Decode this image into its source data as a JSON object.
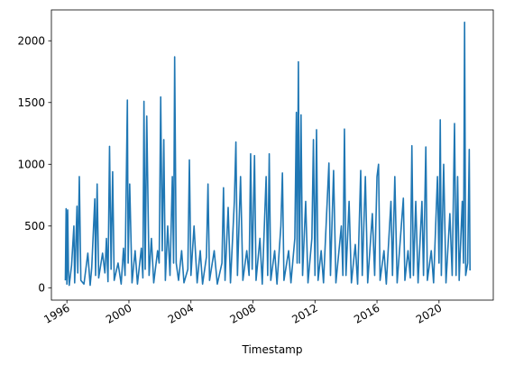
{
  "chart_data": {
    "type": "line",
    "title": "",
    "xlabel": "Timestamp",
    "ylabel": "",
    "xlim": [
      1995.0,
      2023.5
    ],
    "ylim": [
      -100,
      2250
    ],
    "x_ticks": [
      {
        "value": 1996,
        "label": "1996"
      },
      {
        "value": 2000,
        "label": "2000"
      },
      {
        "value": 2004,
        "label": "2004"
      },
      {
        "value": 2008,
        "label": "2008"
      },
      {
        "value": 2012,
        "label": "2012"
      },
      {
        "value": 2016,
        "label": "2016"
      },
      {
        "value": 2020,
        "label": "2020"
      }
    ],
    "y_ticks": [
      {
        "value": 0,
        "label": "0"
      },
      {
        "value": 500,
        "label": "500"
      },
      {
        "value": 1000,
        "label": "1000"
      },
      {
        "value": 1500,
        "label": "1500"
      },
      {
        "value": 2000,
        "label": "2000"
      }
    ],
    "grid": false,
    "series_color": "#1f77b4",
    "series": [
      {
        "values": [
          [
            1995.9,
            60
          ],
          [
            1995.95,
            640
          ],
          [
            1996.0,
            30
          ],
          [
            1996.05,
            630
          ],
          [
            1996.1,
            140
          ],
          [
            1996.15,
            20
          ],
          [
            1996.3,
            180
          ],
          [
            1996.45,
            500
          ],
          [
            1996.5,
            40
          ],
          [
            1996.65,
            660
          ],
          [
            1996.7,
            120
          ],
          [
            1996.8,
            900
          ],
          [
            1996.9,
            60
          ],
          [
            1997.1,
            30
          ],
          [
            1997.35,
            280
          ],
          [
            1997.5,
            20
          ],
          [
            1997.6,
            160
          ],
          [
            1997.8,
            720
          ],
          [
            1997.85,
            100
          ],
          [
            1997.95,
            840
          ],
          [
            1998.05,
            80
          ],
          [
            1998.3,
            280
          ],
          [
            1998.45,
            120
          ],
          [
            1998.55,
            400
          ],
          [
            1998.65,
            50
          ],
          [
            1998.75,
            1145
          ],
          [
            1998.85,
            150
          ],
          [
            1998.95,
            940
          ],
          [
            1999.05,
            60
          ],
          [
            1999.3,
            200
          ],
          [
            1999.5,
            30
          ],
          [
            1999.65,
            320
          ],
          [
            1999.75,
            100
          ],
          [
            1999.9,
            1520
          ],
          [
            1999.95,
            200
          ],
          [
            2000.05,
            840
          ],
          [
            2000.2,
            40
          ],
          [
            2000.4,
            300
          ],
          [
            2000.55,
            30
          ],
          [
            2000.8,
            320
          ],
          [
            2000.9,
            80
          ],
          [
            2000.97,
            1510
          ],
          [
            2001.05,
            150
          ],
          [
            2001.15,
            1390
          ],
          [
            2001.3,
            100
          ],
          [
            2001.45,
            400
          ],
          [
            2001.6,
            40
          ],
          [
            2001.85,
            300
          ],
          [
            2001.95,
            200
          ],
          [
            2002.05,
            1545
          ],
          [
            2002.15,
            300
          ],
          [
            2002.25,
            1200
          ],
          [
            2002.35,
            60
          ],
          [
            2002.5,
            500
          ],
          [
            2002.65,
            100
          ],
          [
            2002.8,
            900
          ],
          [
            2002.88,
            200
          ],
          [
            2002.95,
            1870
          ],
          [
            2003.05,
            200
          ],
          [
            2003.2,
            60
          ],
          [
            2003.4,
            300
          ],
          [
            2003.55,
            40
          ],
          [
            2003.8,
            150
          ],
          [
            2003.9,
            1035
          ],
          [
            2004.0,
            100
          ],
          [
            2004.2,
            500
          ],
          [
            2004.4,
            40
          ],
          [
            2004.6,
            300
          ],
          [
            2004.75,
            30
          ],
          [
            2005.0,
            250
          ],
          [
            2005.1,
            840
          ],
          [
            2005.2,
            60
          ],
          [
            2005.5,
            300
          ],
          [
            2005.7,
            30
          ],
          [
            2006.0,
            200
          ],
          [
            2006.1,
            810
          ],
          [
            2006.2,
            60
          ],
          [
            2006.4,
            650
          ],
          [
            2006.55,
            40
          ],
          [
            2006.8,
            700
          ],
          [
            2006.9,
            1180
          ],
          [
            2007.0,
            100
          ],
          [
            2007.2,
            900
          ],
          [
            2007.35,
            60
          ],
          [
            2007.6,
            300
          ],
          [
            2007.75,
            100
          ],
          [
            2007.85,
            1085
          ],
          [
            2007.95,
            150
          ],
          [
            2008.1,
            1070
          ],
          [
            2008.2,
            60
          ],
          [
            2008.45,
            400
          ],
          [
            2008.6,
            30
          ],
          [
            2008.85,
            900
          ],
          [
            2008.95,
            100
          ],
          [
            2009.05,
            1085
          ],
          [
            2009.15,
            60
          ],
          [
            2009.4,
            300
          ],
          [
            2009.55,
            30
          ],
          [
            2009.8,
            500
          ],
          [
            2009.9,
            930
          ],
          [
            2010.0,
            60
          ],
          [
            2010.3,
            300
          ],
          [
            2010.45,
            40
          ],
          [
            2010.7,
            400
          ],
          [
            2010.8,
            1420
          ],
          [
            2010.85,
            200
          ],
          [
            2010.93,
            1830
          ],
          [
            2011.0,
            200
          ],
          [
            2011.1,
            1400
          ],
          [
            2011.2,
            100
          ],
          [
            2011.4,
            700
          ],
          [
            2011.55,
            40
          ],
          [
            2011.8,
            400
          ],
          [
            2011.9,
            1200
          ],
          [
            2012.0,
            100
          ],
          [
            2012.1,
            1280
          ],
          [
            2012.2,
            60
          ],
          [
            2012.4,
            300
          ],
          [
            2012.55,
            40
          ],
          [
            2012.9,
            1010
          ],
          [
            2013.0,
            100
          ],
          [
            2013.2,
            950
          ],
          [
            2013.35,
            40
          ],
          [
            2013.7,
            500
          ],
          [
            2013.8,
            100
          ],
          [
            2013.9,
            1285
          ],
          [
            2014.0,
            100
          ],
          [
            2014.2,
            700
          ],
          [
            2014.35,
            40
          ],
          [
            2014.6,
            350
          ],
          [
            2014.75,
            30
          ],
          [
            2014.95,
            950
          ],
          [
            2015.05,
            100
          ],
          [
            2015.25,
            900
          ],
          [
            2015.4,
            40
          ],
          [
            2015.7,
            600
          ],
          [
            2015.85,
            100
          ],
          [
            2016.0,
            900
          ],
          [
            2016.1,
            1000
          ],
          [
            2016.2,
            60
          ],
          [
            2016.45,
            300
          ],
          [
            2016.6,
            30
          ],
          [
            2016.9,
            700
          ],
          [
            2017.0,
            100
          ],
          [
            2017.15,
            900
          ],
          [
            2017.3,
            40
          ],
          [
            2017.7,
            725
          ],
          [
            2017.8,
            60
          ],
          [
            2018.0,
            300
          ],
          [
            2018.15,
            80
          ],
          [
            2018.25,
            1150
          ],
          [
            2018.35,
            100
          ],
          [
            2018.5,
            700
          ],
          [
            2018.65,
            40
          ],
          [
            2018.9,
            700
          ],
          [
            2019.0,
            100
          ],
          [
            2019.15,
            1140
          ],
          [
            2019.25,
            60
          ],
          [
            2019.5,
            300
          ],
          [
            2019.65,
            40
          ],
          [
            2019.9,
            900
          ],
          [
            2020.0,
            200
          ],
          [
            2020.08,
            1360
          ],
          [
            2020.15,
            100
          ],
          [
            2020.3,
            1000
          ],
          [
            2020.45,
            40
          ],
          [
            2020.7,
            600
          ],
          [
            2020.85,
            100
          ],
          [
            2021.0,
            1330
          ],
          [
            2021.1,
            100
          ],
          [
            2021.2,
            900
          ],
          [
            2021.3,
            60
          ],
          [
            2021.5,
            700
          ],
          [
            2021.58,
            200
          ],
          [
            2021.65,
            2150
          ],
          [
            2021.72,
            100
          ],
          [
            2021.85,
            200
          ],
          [
            2021.95,
            1120
          ],
          [
            2022.0,
            140
          ]
        ]
      }
    ]
  }
}
